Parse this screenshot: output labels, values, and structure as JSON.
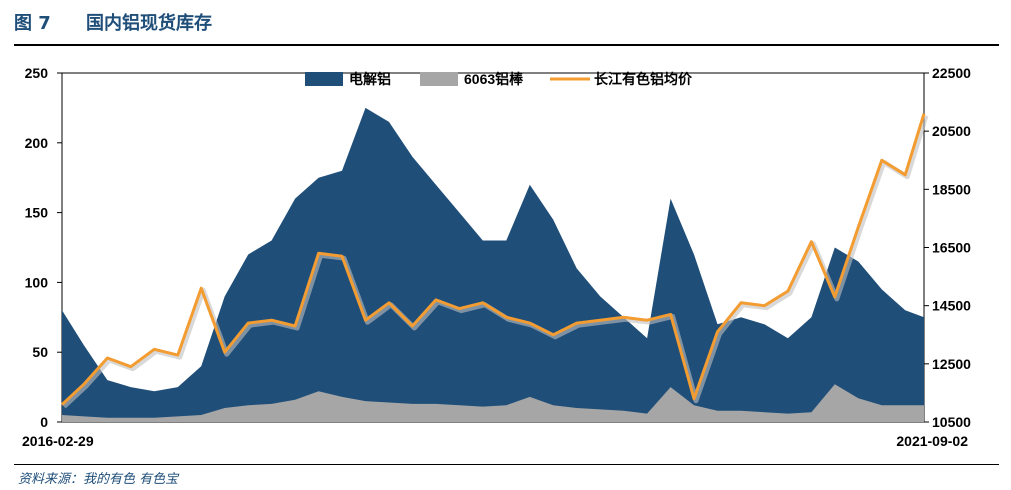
{
  "figure": {
    "number": "图 7",
    "title": "国内铝现货库存",
    "source": "资料来源：我的有色  有色宝"
  },
  "chart_data": {
    "type": "area",
    "x_start_label": "2016-02-29",
    "x_end_label": "2021-09-02",
    "left_axis": {
      "ylim": [
        0,
        250
      ],
      "ticks": [
        "0",
        "50",
        "100",
        "150",
        "200",
        "250"
      ]
    },
    "right_axis": {
      "ylim": [
        10500,
        22500
      ],
      "ticks": [
        "10500",
        "12500",
        "14500",
        "16500",
        "18500",
        "20500",
        "22500"
      ]
    },
    "legend_position": "top-center",
    "x": [
      2016.16,
      2016.3,
      2016.45,
      2016.6,
      2016.75,
      2016.9,
      2017.05,
      2017.2,
      2017.35,
      2017.5,
      2017.65,
      2017.8,
      2017.95,
      2018.1,
      2018.25,
      2018.4,
      2018.55,
      2018.7,
      2018.85,
      2019.0,
      2019.15,
      2019.3,
      2019.45,
      2019.6,
      2019.75,
      2019.9,
      2020.05,
      2020.2,
      2020.35,
      2020.5,
      2020.65,
      2020.8,
      2020.95,
      2021.1,
      2021.25,
      2021.4,
      2021.55,
      2021.67
    ],
    "series": [
      {
        "name": "电解铝",
        "axis": "left",
        "color": "#1f4e79",
        "values": [
          80,
          55,
          30,
          25,
          22,
          25,
          40,
          90,
          120,
          130,
          160,
          175,
          180,
          225,
          215,
          190,
          170,
          150,
          130,
          130,
          170,
          145,
          110,
          90,
          75,
          60,
          160,
          120,
          70,
          75,
          70,
          60,
          75,
          125,
          115,
          95,
          80,
          75
        ]
      },
      {
        "name": "6063铝棒",
        "axis": "left",
        "color": "#a6a6a6",
        "values": [
          5,
          4,
          3,
          3,
          3,
          4,
          5,
          10,
          12,
          13,
          16,
          22,
          18,
          15,
          14,
          13,
          13,
          12,
          11,
          12,
          18,
          12,
          10,
          9,
          8,
          6,
          25,
          12,
          8,
          8,
          7,
          6,
          7,
          27,
          17,
          12,
          12,
          12
        ]
      },
      {
        "name": "长江有色铝均价",
        "axis": "right",
        "color": "#f39c31",
        "values": [
          11100,
          11800,
          12700,
          12400,
          13000,
          12800,
          15100,
          12900,
          13900,
          14000,
          13800,
          16300,
          16200,
          14000,
          14600,
          13800,
          14700,
          14400,
          14600,
          14100,
          13900,
          13500,
          13900,
          14000,
          14100,
          14000,
          14200,
          11300,
          13600,
          14600,
          14500,
          15000,
          16700,
          14800,
          17200,
          19500,
          19000,
          21100
        ]
      }
    ]
  }
}
